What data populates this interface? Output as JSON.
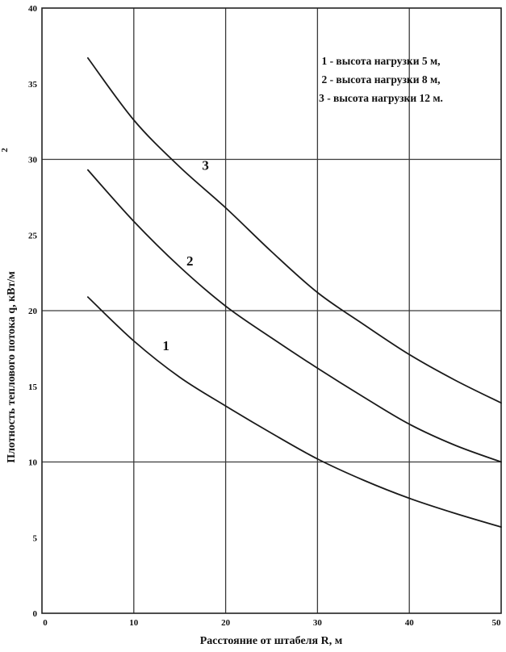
{
  "chart_data": {
    "type": "line",
    "title": "",
    "xlabel": "Расстояние от штабеля R, м",
    "ylabel": "Плотность теплового потока   q, кВт/м",
    "ylabel_sup": "2",
    "xlim": [
      0,
      50
    ],
    "ylim": [
      0,
      40
    ],
    "x_ticks": [
      0,
      10,
      20,
      30,
      40,
      50
    ],
    "y_ticks": [
      0,
      5,
      10,
      15,
      20,
      25,
      30,
      35,
      40
    ],
    "grid_x": [
      10,
      20,
      30,
      40
    ],
    "grid_y": [
      10,
      20,
      30
    ],
    "legend": {
      "position": "top-right",
      "entries": [
        "1 - высота нагрузки 5 м,",
        "2 - высота нагрузки 8 м,",
        "3 - высота нагрузки 12 м."
      ]
    },
    "series": [
      {
        "label": "1",
        "x": [
          5,
          10,
          15,
          20,
          25,
          30,
          35,
          40,
          45,
          50
        ],
        "y": [
          20.9,
          18.0,
          15.6,
          13.7,
          11.9,
          10.2,
          8.8,
          7.6,
          6.6,
          5.7
        ]
      },
      {
        "label": "2",
        "x": [
          5,
          10,
          15,
          20,
          25,
          30,
          35,
          40,
          45,
          50
        ],
        "y": [
          29.3,
          25.9,
          22.9,
          20.3,
          18.2,
          16.2,
          14.3,
          12.5,
          11.1,
          10.0
        ]
      },
      {
        "label": "3",
        "x": [
          5,
          10,
          15,
          20,
          25,
          30,
          35,
          40,
          45,
          50
        ],
        "y": [
          36.7,
          32.6,
          29.5,
          26.8,
          23.9,
          21.2,
          19.1,
          17.1,
          15.4,
          13.9
        ]
      }
    ],
    "curve_labels": [
      {
        "text": "1",
        "x": 13.5,
        "y": 17.4
      },
      {
        "text": "2",
        "x": 16.1,
        "y": 23.0
      },
      {
        "text": "3",
        "x": 17.8,
        "y": 29.3
      }
    ],
    "line_color": "#1a1a1a",
    "grid_color": "#3a3a3a"
  }
}
